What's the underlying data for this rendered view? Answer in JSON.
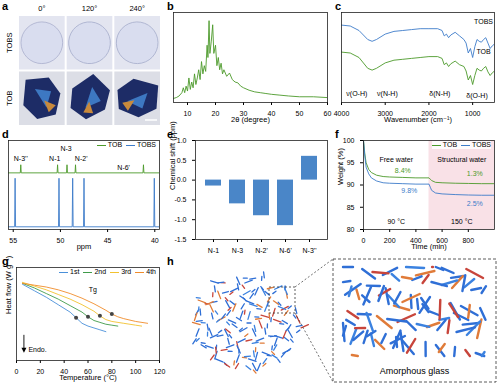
{
  "images": [
    {
      "panel": "a",
      "columns": [
        "0°",
        "120°",
        "240°"
      ],
      "rows": [
        "TOBS",
        "TOB"
      ]
    },
    {
      "panel": "h",
      "label": "Amorphous glass"
    }
  ],
  "chart_data": [
    {
      "panel": "b",
      "type": "line",
      "x_label": "2θ (degree)",
      "xlim": [
        5,
        60
      ],
      "xticks": [
        10,
        20,
        30,
        40,
        50,
        60
      ],
      "ylim": [
        0,
        110
      ],
      "tick_labels": "x",
      "color": "#4c9a2a",
      "x": [
        5,
        6,
        7,
        8,
        8.5,
        9,
        9.5,
        10,
        10.5,
        11,
        11.5,
        12,
        12.5,
        13,
        13.5,
        14,
        14.5,
        15,
        15.5,
        16,
        16.5,
        17,
        17.3,
        17.7,
        18,
        18.5,
        19,
        19.4,
        20,
        20.5,
        21,
        21.5,
        22,
        22.5,
        23,
        24,
        25,
        26,
        27,
        28,
        29,
        30,
        32,
        34,
        36,
        38,
        40,
        43,
        46,
        50,
        55,
        60
      ],
      "values": [
        5,
        6,
        8,
        12,
        18,
        12,
        20,
        14,
        30,
        16,
        25,
        18,
        35,
        22,
        30,
        40,
        28,
        50,
        35,
        45,
        38,
        70,
        55,
        100,
        60,
        75,
        95,
        60,
        70,
        45,
        55,
        40,
        48,
        35,
        40,
        32,
        36,
        28,
        25,
        24,
        20,
        18,
        15,
        13,
        12,
        11,
        10,
        9,
        8,
        7,
        7,
        6
      ]
    },
    {
      "panel": "c",
      "type": "line",
      "x_label": "Wavenumber (cm⁻¹)",
      "xlim": [
        4000,
        500
      ],
      "xticks": [
        4000,
        3000,
        2000,
        1000
      ],
      "ylim": [
        0,
        100
      ],
      "tick_labels": "x",
      "x": [
        4000,
        3800,
        3600,
        3400,
        3300,
        3200,
        3000,
        2800,
        2600,
        2400,
        2200,
        2000,
        1800,
        1700,
        1650,
        1600,
        1550,
        1500,
        1400,
        1300,
        1200,
        1150,
        1100,
        1050,
        1000,
        950,
        900,
        850,
        800,
        750,
        700,
        650,
        600,
        550,
        500
      ],
      "series": [
        {
          "name": "TOBS",
          "color": "#3d7cc9",
          "name_at": [
            750,
            90
          ],
          "values": [
            86,
            85,
            80,
            70,
            68,
            70,
            76,
            79,
            80,
            81,
            82,
            82,
            82,
            80,
            74,
            76,
            72,
            75,
            78,
            74,
            70,
            66,
            55,
            60,
            50,
            62,
            70,
            68,
            67,
            70,
            72,
            66,
            60,
            63,
            65
          ]
        },
        {
          "name": "TOB",
          "color": "#4c9a2a",
          "name_at": [
            750,
            56
          ],
          "values": [
            56,
            55,
            50,
            38,
            36,
            38,
            44,
            47,
            48,
            49,
            50,
            51,
            51,
            49,
            42,
            44,
            40,
            43,
            46,
            42,
            40,
            35,
            25,
            30,
            20,
            30,
            38,
            36,
            35,
            38,
            40,
            34,
            30,
            33,
            35
          ]
        }
      ],
      "annotations": [
        {
          "text": "ν(O-H)",
          "x": 3650,
          "y": 10
        },
        {
          "text": "ν(N-H)",
          "x": 2950,
          "y": 10
        },
        {
          "text": "δ(N-H)",
          "x": 1750,
          "y": 10
        },
        {
          "text": "δ(O-H)",
          "x": 900,
          "y": 8
        }
      ]
    },
    {
      "panel": "d",
      "type": "line",
      "x_label": "ppm",
      "xlim": [
        55.5,
        39.5
      ],
      "xticks": [
        55,
        50,
        45,
        40
      ],
      "ylim": [
        -0.05,
        1.6
      ],
      "tick_labels": "x",
      "legend": "top-right",
      "series": [
        {
          "name": "TOB",
          "color": "#4c9a2a",
          "x": [
            55.5,
            54.25,
            54.2,
            54.15,
            50.35,
            50.3,
            50.25,
            49.35,
            49.3,
            49.25,
            48.45,
            48.4,
            48.35,
            41.25,
            41.2,
            41.15,
            39.5
          ],
          "values": [
            1,
            1,
            1.15,
            1,
            1,
            1.15,
            1,
            1,
            1.15,
            1,
            1,
            1.15,
            1,
            1,
            1.15,
            1,
            1
          ]
        },
        {
          "name": "TOBS",
          "color": "#3d7cc9",
          "x": [
            55.5,
            54.85,
            54.8,
            54.75,
            50.2,
            50.15,
            50.1,
            48.75,
            48.7,
            48.65,
            47.55,
            47.5,
            47.45,
            40.1,
            40.05,
            40.0,
            39.5
          ],
          "values": [
            0,
            0,
            0.9,
            0,
            0,
            0.9,
            0,
            0,
            0.9,
            0,
            0,
            0.9,
            0,
            0,
            0.9,
            0,
            0
          ]
        }
      ],
      "annotations": [
        {
          "text": "N-3''",
          "x": 54.2,
          "y": 1.27
        },
        {
          "text": "N-1",
          "x": 50.6,
          "y": 1.27
        },
        {
          "text": "N-3",
          "x": 49.4,
          "y": 1.45
        },
        {
          "text": "N-2'",
          "x": 47.8,
          "y": 1.27
        },
        {
          "text": "N-6'",
          "x": 43.3,
          "y": 1.1
        }
      ]
    },
    {
      "panel": "e",
      "type": "bar",
      "y_label": "Chemical shift (ppm)",
      "categories": [
        "N-1",
        "N-3",
        "N-2'",
        "N-6'",
        "N-3''"
      ],
      "values": [
        -0.15,
        -0.6,
        -0.9,
        -1.15,
        0.6
      ],
      "color": "#4a86c8",
      "ylim": [
        -1.5,
        1.0
      ],
      "yticks": [
        -1.5,
        {
          "value": -1,
          "label": "-1.0"
        },
        -0.5,
        {
          "value": 0,
          "label": "0.0"
        },
        0.5,
        {
          "value": 1,
          "label": "1.0"
        }
      ]
    },
    {
      "panel": "f",
      "type": "line",
      "x_label": "Time (min)",
      "y_label": "Weight (%)",
      "xlim": [
        0,
        1000
      ],
      "xticks": [
        0,
        200,
        400,
        600,
        800
      ],
      "ylim": [
        80,
        100
      ],
      "yticks": [
        80,
        85,
        90,
        95,
        100
      ],
      "legend": "top-right",
      "x": [
        0,
        10,
        20,
        40,
        60,
        100,
        150,
        200,
        300,
        400,
        500,
        510,
        520,
        550,
        600,
        700,
        800,
        900,
        1000
      ],
      "series": [
        {
          "name": "TOB",
          "color": "#4c9a2a",
          "values": [
            100,
            97,
            95,
            93.5,
            92.8,
            92.2,
            91.9,
            91.8,
            91.7,
            91.6,
            91.6,
            91.3,
            91,
            90.6,
            90.5,
            90.4,
            90.35,
            90.3,
            90.3
          ]
        },
        {
          "name": "TOBS",
          "color": "#3d7cc9",
          "values": [
            100,
            96.5,
            94,
            92.5,
            91.6,
            90.9,
            90.5,
            90.4,
            90.3,
            90.2,
            90.2,
            89.5,
            88.8,
            88.2,
            88.0,
            87.85,
            87.75,
            87.7,
            87.7
          ]
        }
      ],
      "regions": [
        {
          "x": [
            0,
            500
          ],
          "label": "Free water",
          "sublabel": "90 °C"
        },
        {
          "x": [
            500,
            1000
          ],
          "label": "Structural water",
          "sublabel": "150 °C",
          "color": "#f9e1e7"
        }
      ],
      "annotations": [
        {
          "text": "8.4%",
          "x": 300,
          "y": 93.3,
          "color": "#4c9a2a"
        },
        {
          "text": "9.8%",
          "x": 350,
          "y": 88.6,
          "color": "#3d7cc9"
        },
        {
          "text": "1.3%",
          "x": 850,
          "y": 92.6,
          "color": "#4c9a2a"
        },
        {
          "text": "2.5%",
          "x": 850,
          "y": 85.8,
          "color": "#3d7cc9"
        }
      ]
    },
    {
      "panel": "g",
      "type": "line",
      "x_label": "Temperature (°C)",
      "y_label": "Heat flow (W g⁻¹)",
      "xlim": [
        0,
        120
      ],
      "xticks": [
        0,
        20,
        40,
        60,
        80,
        100,
        120
      ],
      "ylim": [
        0,
        10
      ],
      "tick_labels": "x",
      "legend": "top-right",
      "series": [
        {
          "name": "1st",
          "color": "#4a90d9",
          "x": [
            5,
            15,
            25,
            35,
            45,
            50,
            55,
            60,
            65,
            70,
            75
          ],
          "values": [
            8.2,
            7.5,
            6.8,
            6.0,
            5.2,
            4.6,
            4.0,
            3.7,
            3.5,
            3.3,
            3.1
          ],
          "tg": {
            "x": 50,
            "y": 4.6
          }
        },
        {
          "name": "2nd",
          "color": "#3f9b4a",
          "x": [
            5,
            15,
            25,
            35,
            45,
            55,
            60,
            65,
            70,
            75,
            80,
            85
          ],
          "values": [
            8.3,
            7.8,
            7.2,
            6.6,
            5.9,
            5.2,
            4.7,
            4.3,
            4.1,
            3.9,
            3.8,
            3.7
          ],
          "tg": {
            "x": 60,
            "y": 4.7
          }
        },
        {
          "name": "3rd",
          "color": "#f2c230",
          "x": [
            5,
            15,
            25,
            35,
            45,
            55,
            65,
            70,
            75,
            80,
            90,
            100,
            105
          ],
          "values": [
            8.4,
            8.0,
            7.6,
            7.1,
            6.6,
            6.0,
            5.3,
            4.8,
            4.4,
            4.2,
            4.0,
            3.8,
            3.7
          ],
          "tg": {
            "x": 70,
            "y": 4.8
          }
        },
        {
          "name": "4th",
          "color": "#f08c2a",
          "x": [
            5,
            15,
            25,
            35,
            45,
            55,
            65,
            75,
            80,
            85,
            90,
            100,
            110
          ],
          "values": [
            8.3,
            8.1,
            7.9,
            7.6,
            7.2,
            6.7,
            6.1,
            5.4,
            5.0,
            4.7,
            4.5,
            4.2,
            4.0
          ],
          "tg": {
            "x": 80,
            "y": 5.0
          }
        }
      ],
      "annotations": [
        {
          "text": "Tg",
          "x": 64,
          "y": 7.6
        },
        {
          "text": "Endo.",
          "x": 10,
          "y": 1.2,
          "marker": "arrow-down"
        }
      ]
    }
  ]
}
